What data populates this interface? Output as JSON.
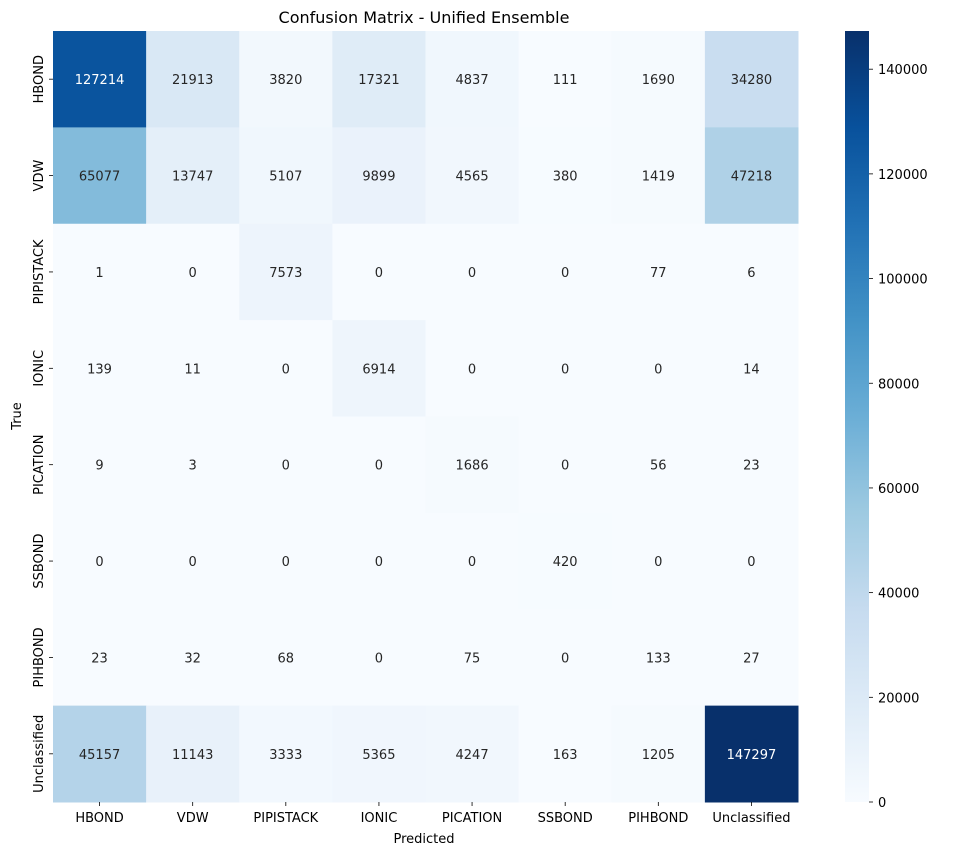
{
  "chart_data": {
    "type": "heatmap",
    "title": "Confusion Matrix - Unified Ensemble",
    "xlabel": "Predicted",
    "ylabel": "True",
    "x_categories": [
      "HBOND",
      "VDW",
      "PIPISTACK",
      "IONIC",
      "PICATION",
      "SSBOND",
      "PIHBOND",
      "Unclassified"
    ],
    "y_categories": [
      "HBOND",
      "VDW",
      "PIPISTACK",
      "IONIC",
      "PICATION",
      "SSBOND",
      "PIHBOND",
      "Unclassified"
    ],
    "values": [
      [
        127214,
        21913,
        3820,
        17321,
        4837,
        111,
        1690,
        34280
      ],
      [
        65077,
        13747,
        5107,
        9899,
        4565,
        380,
        1419,
        47218
      ],
      [
        1,
        0,
        7573,
        0,
        0,
        0,
        77,
        6
      ],
      [
        139,
        11,
        0,
        6914,
        0,
        0,
        0,
        14
      ],
      [
        9,
        3,
        0,
        0,
        1686,
        0,
        56,
        23
      ],
      [
        0,
        0,
        0,
        0,
        0,
        420,
        0,
        0
      ],
      [
        23,
        32,
        68,
        0,
        75,
        0,
        133,
        27
      ],
      [
        45157,
        11143,
        3333,
        5365,
        4247,
        163,
        1205,
        147297
      ]
    ],
    "colormap": "Blues",
    "colorbar": {
      "min": 0,
      "max": 147297,
      "ticks": [
        0,
        20000,
        40000,
        60000,
        80000,
        100000,
        120000,
        140000
      ]
    },
    "grid": false
  }
}
